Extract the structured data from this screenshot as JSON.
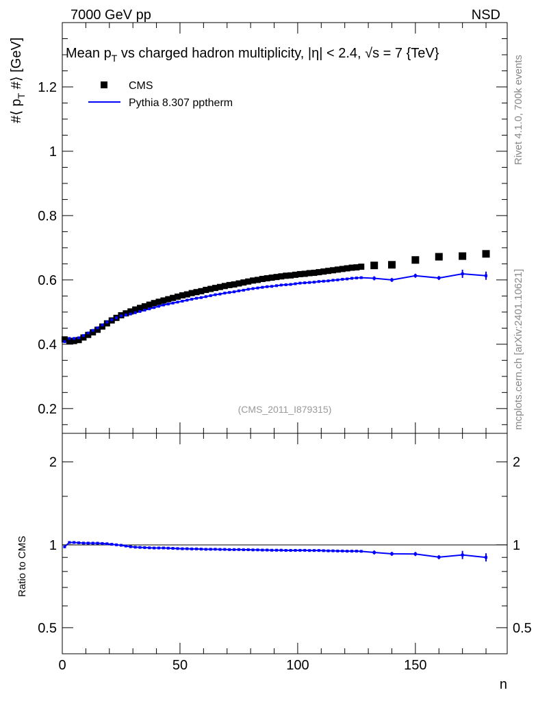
{
  "chart_data": {
    "type": "scatter",
    "header_left": "7000 GeV pp",
    "header_right": "NSD",
    "title": "Mean p",
    "title_sub": "T",
    "title_rest": " vs charged hadron multiplicity, |η| < 2.4, √s = 7 {TeV}",
    "ylabel": "#⟨ p",
    "ylabel_sub": "T",
    "ylabel_rest": " #⟩ [GeV]",
    "xlabel": "n",
    "ratio_ylabel": "Ratio to CMS",
    "side_label_top": "Rivet 4.1.0,  700k events",
    "side_label_bottom": "mcplots.cern.ch [arXiv:2401.10621]",
    "watermark": "(CMS_2011_I879315)",
    "xlim": [
      0,
      189
    ],
    "ylim": [
      0.123,
      1.4
    ],
    "ratio_ylim": [
      0.402,
      2.54
    ],
    "ratio_scale": "log",
    "x_ticks": [
      "0",
      "50",
      "100",
      "150"
    ],
    "y_ticks": [
      "0.2",
      "0.4",
      "0.6",
      "0.8",
      "1",
      "1.2"
    ],
    "ratio_ticks": [
      "0.5",
      "1",
      "2"
    ],
    "legend": {
      "placement": "top-left",
      "entries": [
        "CMS",
        "Pythia 8.307 pptherm"
      ]
    },
    "colors": {
      "cms": "#000000",
      "pythia": "#0000ff"
    },
    "x": [
      1,
      3,
      5,
      7,
      9,
      11,
      13,
      15,
      17,
      19,
      21,
      23,
      25,
      27,
      29,
      31,
      33,
      35,
      37,
      39,
      41,
      43,
      45,
      47,
      49,
      51,
      53,
      55,
      57,
      59,
      61,
      63,
      65,
      67,
      69,
      71,
      73,
      75,
      77,
      79,
      81,
      83,
      85,
      87,
      89,
      91,
      93,
      95,
      97,
      99,
      101,
      103,
      105,
      107,
      109,
      111,
      113,
      115,
      117,
      119,
      121,
      123,
      125,
      127,
      132.5,
      140,
      150,
      160,
      170,
      180
    ],
    "series": [
      {
        "name": "CMS",
        "values": [
          0.415,
          0.41,
          0.41,
          0.413,
          0.421,
          0.429,
          0.437,
          0.445,
          0.455,
          0.465,
          0.474,
          0.482,
          0.49,
          0.496,
          0.502,
          0.508,
          0.513,
          0.518,
          0.523,
          0.528,
          0.532,
          0.536,
          0.54,
          0.544,
          0.548,
          0.552,
          0.555,
          0.559,
          0.562,
          0.565,
          0.569,
          0.572,
          0.575,
          0.578,
          0.581,
          0.584,
          0.586,
          0.589,
          0.592,
          0.595,
          0.598,
          0.6,
          0.603,
          0.605,
          0.607,
          0.609,
          0.611,
          0.613,
          0.614,
          0.616,
          0.618,
          0.619,
          0.621,
          0.622,
          0.624,
          0.626,
          0.628,
          0.63,
          0.632,
          0.634,
          0.636,
          0.638,
          0.639,
          0.641,
          0.645,
          0.647,
          0.662,
          0.672,
          0.674,
          0.681
        ]
      },
      {
        "name": "Pythia 8.307 pptherm",
        "values": [
          0.408,
          0.418,
          0.418,
          0.42,
          0.427,
          0.435,
          0.443,
          0.451,
          0.46,
          0.469,
          0.476,
          0.482,
          0.488,
          0.491,
          0.494,
          0.498,
          0.502,
          0.506,
          0.51,
          0.514,
          0.518,
          0.522,
          0.525,
          0.528,
          0.531,
          0.534,
          0.537,
          0.54,
          0.543,
          0.545,
          0.548,
          0.551,
          0.554,
          0.556,
          0.559,
          0.561,
          0.563,
          0.566,
          0.568,
          0.571,
          0.573,
          0.575,
          0.577,
          0.579,
          0.58,
          0.582,
          0.584,
          0.585,
          0.586,
          0.588,
          0.59,
          0.591,
          0.592,
          0.593,
          0.595,
          0.596,
          0.597,
          0.599,
          0.6,
          0.602,
          0.603,
          0.605,
          0.606,
          0.607,
          0.605,
          0.6,
          0.613,
          0.606,
          0.619,
          0.613
        ]
      }
    ]
  }
}
